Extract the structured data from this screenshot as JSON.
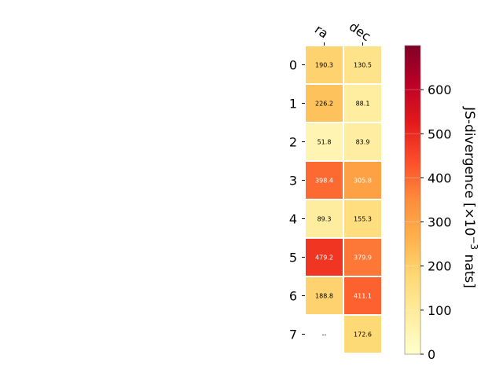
{
  "chart_data": {
    "type": "heatmap",
    "x_categories": [
      "ra",
      "dec"
    ],
    "y_categories": [
      "0",
      "1",
      "2",
      "3",
      "4",
      "5",
      "6",
      "7"
    ],
    "values": [
      [
        190.3,
        130.5
      ],
      [
        226.2,
        88.1
      ],
      [
        51.8,
        83.9
      ],
      [
        398.4,
        305.8
      ],
      [
        89.3,
        155.3
      ],
      [
        479.2,
        379.9
      ],
      [
        188.8,
        411.1
      ],
      [
        null,
        172.6
      ]
    ],
    "missing_label": "--",
    "colormap": "YlOrRd",
    "colorbar": {
      "label_prefix": "JS-divergence [×10",
      "label_exp": "−3",
      "label_suffix": " nats]",
      "range": [
        0,
        700
      ],
      "ticks": [
        0,
        100,
        200,
        300,
        400,
        500,
        600
      ]
    },
    "colors": {
      "cmap_stops": [
        "#ffffcc",
        "#ffeda0",
        "#fed976",
        "#feb24c",
        "#fd8d3c",
        "#fc4e2a",
        "#e31a1c",
        "#bd0026",
        "#800026"
      ]
    }
  }
}
